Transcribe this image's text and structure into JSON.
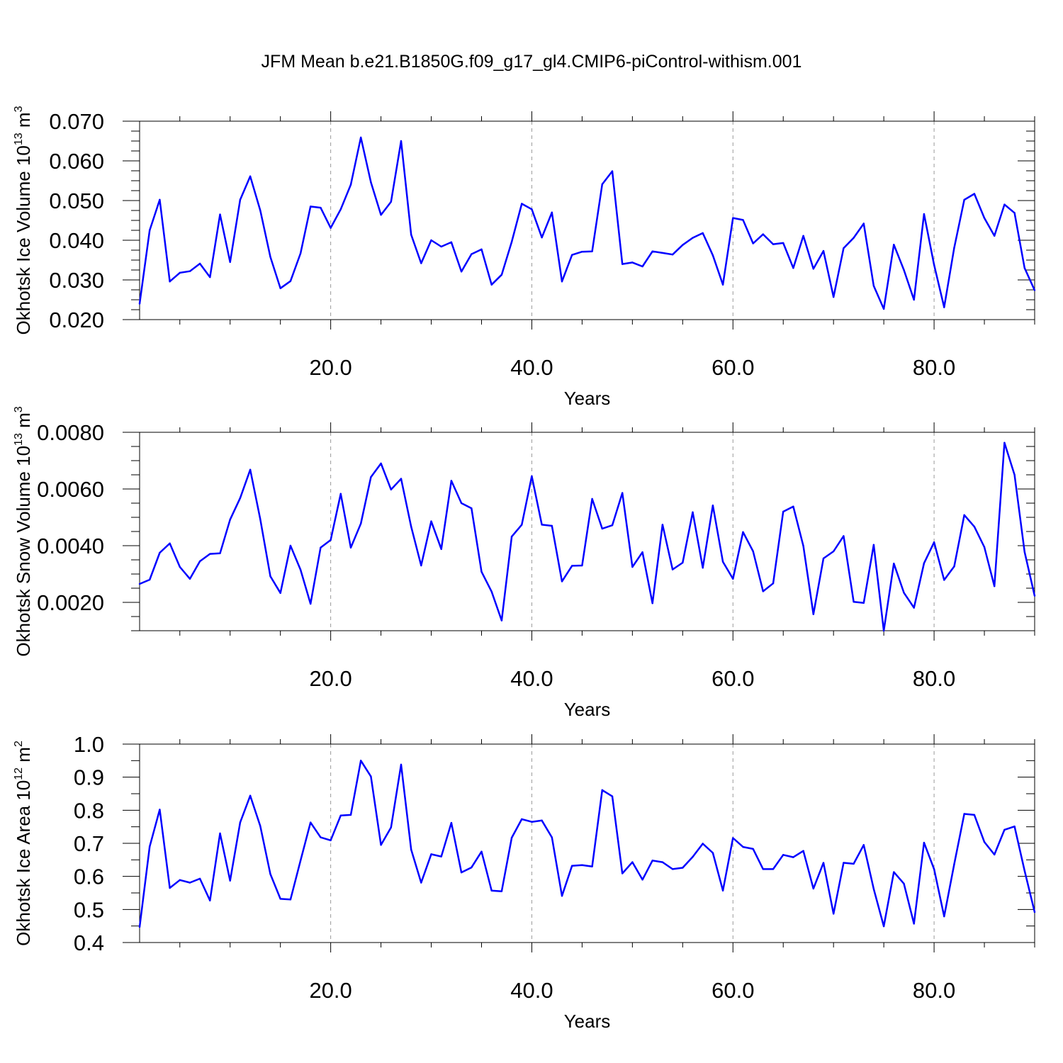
{
  "title": "JFM Mean b.e21.B1850G.f09_g17_gl4.CMIP6-piControl-withism.001",
  "chart_data": [
    {
      "type": "line",
      "title": "",
      "xlabel": "Years",
      "ylabel": "Okhotsk Ice Volume 10",
      "ylabel_sup": "13",
      "ylabel_unit": " m",
      "ylabel_unit_sup": "3",
      "xlim": [
        1,
        90
      ],
      "ylim": [
        0.02,
        0.07
      ],
      "yticks": [
        0.02,
        0.03,
        0.04,
        0.05,
        0.06,
        0.07
      ],
      "ytick_labels": [
        "0.020",
        "0.030",
        "0.040",
        "0.050",
        "0.060",
        "0.070"
      ],
      "xticks": [
        20,
        40,
        60,
        80
      ],
      "xtick_labels": [
        "20.0",
        "40.0",
        "60.0",
        "80.0"
      ],
      "grid": "vertical dashed at major x ticks",
      "series": [
        {
          "color": "#0000ff",
          "x": [
            1,
            2,
            3,
            4,
            5,
            6,
            7,
            8,
            9,
            10,
            11,
            12,
            13,
            14,
            15,
            16,
            17,
            18,
            19,
            20,
            21,
            22,
            23,
            24,
            25,
            26,
            27,
            28,
            29,
            30,
            31,
            32,
            33,
            34,
            35,
            36,
            37,
            38,
            39,
            40,
            41,
            42,
            43,
            44,
            45,
            46,
            47,
            48,
            49,
            50,
            51,
            52,
            53,
            54,
            55,
            56,
            57,
            58,
            59,
            60,
            61,
            62,
            63,
            64,
            65,
            66,
            67,
            68,
            69,
            70,
            71,
            72,
            73,
            74,
            75,
            76,
            77,
            78,
            79,
            80,
            81,
            82,
            83,
            84,
            85,
            86,
            87,
            88,
            89,
            90
          ],
          "y": [
            0.024,
            0.0425,
            0.0502,
            0.0296,
            0.0318,
            0.0322,
            0.0341,
            0.0307,
            0.0465,
            0.0345,
            0.0502,
            0.0561,
            0.0475,
            0.0358,
            0.0279,
            0.0297,
            0.0367,
            0.0485,
            0.0482,
            0.0431,
            0.0478,
            0.054,
            0.0659,
            0.0546,
            0.0464,
            0.0497,
            0.065,
            0.0414,
            0.0342,
            0.04,
            0.0384,
            0.0395,
            0.0321,
            0.0365,
            0.0377,
            0.0288,
            0.0313,
            0.0396,
            0.0492,
            0.0478,
            0.0407,
            0.047,
            0.0296,
            0.0363,
            0.0371,
            0.0372,
            0.0541,
            0.0574,
            0.034,
            0.0344,
            0.0334,
            0.0372,
            0.0368,
            0.0364,
            0.0388,
            0.0406,
            0.0418,
            0.0362,
            0.0288,
            0.0456,
            0.0451,
            0.0392,
            0.0415,
            0.039,
            0.0393,
            0.033,
            0.0411,
            0.0328,
            0.0373,
            0.0257,
            0.038,
            0.0406,
            0.0442,
            0.0285,
            0.0227,
            0.0389,
            0.0325,
            0.025,
            0.0466,
            0.0338,
            0.0231,
            0.0381,
            0.0502,
            0.0517,
            0.0456,
            0.0411,
            0.049,
            0.0469,
            0.033,
            0.0274
          ]
        }
      ]
    },
    {
      "type": "line",
      "title": "",
      "xlabel": "Years",
      "ylabel": "Okhotsk Snow Volume 10",
      "ylabel_sup": "13",
      "ylabel_unit": " m",
      "ylabel_unit_sup": "3",
      "xlim": [
        1,
        90
      ],
      "ylim": [
        0.001,
        0.008
      ],
      "yticks": [
        0.002,
        0.004,
        0.006,
        0.008
      ],
      "ytick_labels": [
        "0.0020",
        "0.0040",
        "0.0060",
        "0.0080"
      ],
      "xticks": [
        20,
        40,
        60,
        80
      ],
      "xtick_labels": [
        "20.0",
        "40.0",
        "60.0",
        "80.0"
      ],
      "grid": "vertical dashed at major x ticks",
      "series": [
        {
          "color": "#0000ff",
          "x": [
            1,
            2,
            3,
            4,
            5,
            6,
            7,
            8,
            9,
            10,
            11,
            12,
            13,
            14,
            15,
            16,
            17,
            18,
            19,
            20,
            21,
            22,
            23,
            24,
            25,
            26,
            27,
            28,
            29,
            30,
            31,
            32,
            33,
            34,
            35,
            36,
            37,
            38,
            39,
            40,
            41,
            42,
            43,
            44,
            45,
            46,
            47,
            48,
            49,
            50,
            51,
            52,
            53,
            54,
            55,
            56,
            57,
            58,
            59,
            60,
            61,
            62,
            63,
            64,
            65,
            66,
            67,
            68,
            69,
            70,
            71,
            72,
            73,
            74,
            75,
            76,
            77,
            78,
            79,
            80,
            81,
            82,
            83,
            84,
            85,
            86,
            87,
            88,
            89,
            90
          ],
          "y": [
            0.00265,
            0.0028,
            0.00375,
            0.00408,
            0.00325,
            0.00283,
            0.00345,
            0.00371,
            0.00373,
            0.00492,
            0.00568,
            0.00668,
            0.00493,
            0.00292,
            0.00233,
            0.004,
            0.00315,
            0.00195,
            0.00393,
            0.0042,
            0.00583,
            0.00393,
            0.00478,
            0.00642,
            0.0069,
            0.00598,
            0.00636,
            0.00467,
            0.0033,
            0.00486,
            0.00388,
            0.00629,
            0.0055,
            0.00532,
            0.00308,
            0.00238,
            0.00136,
            0.00432,
            0.00474,
            0.00645,
            0.00474,
            0.0047,
            0.00274,
            0.00329,
            0.0033,
            0.00565,
            0.0046,
            0.00472,
            0.00586,
            0.00325,
            0.00377,
            0.00197,
            0.00474,
            0.00316,
            0.0034,
            0.00518,
            0.00322,
            0.00542,
            0.00343,
            0.00283,
            0.00448,
            0.0038,
            0.00239,
            0.00267,
            0.0052,
            0.00538,
            0.00399,
            0.00158,
            0.00355,
            0.0038,
            0.00434,
            0.00202,
            0.00198,
            0.00403,
            0.001,
            0.00337,
            0.00234,
            0.00181,
            0.00338,
            0.00412,
            0.00279,
            0.00327,
            0.00508,
            0.00467,
            0.00395,
            0.00257,
            0.00763,
            0.0065,
            0.00378,
            0.00223
          ]
        }
      ]
    },
    {
      "type": "line",
      "title": "",
      "xlabel": "Years",
      "ylabel": "Okhotsk Ice Area 10",
      "ylabel_sup": "12",
      "ylabel_unit": " m",
      "ylabel_unit_sup": "2",
      "xlim": [
        1,
        90
      ],
      "ylim": [
        0.4,
        1.0
      ],
      "yticks": [
        0.4,
        0.5,
        0.6,
        0.7,
        0.8,
        0.9,
        1.0
      ],
      "ytick_labels": [
        "0.4",
        "0.5",
        "0.6",
        "0.7",
        "0.8",
        "0.9",
        "1.0"
      ],
      "xticks": [
        20,
        40,
        60,
        80
      ],
      "xtick_labels": [
        "20.0",
        "40.0",
        "60.0",
        "80.0"
      ],
      "grid": "vertical dashed at major x ticks",
      "series": [
        {
          "color": "#0000ff",
          "x": [
            1,
            2,
            3,
            4,
            5,
            6,
            7,
            8,
            9,
            10,
            11,
            12,
            13,
            14,
            15,
            16,
            17,
            18,
            19,
            20,
            21,
            22,
            23,
            24,
            25,
            26,
            27,
            28,
            29,
            30,
            31,
            32,
            33,
            34,
            35,
            36,
            37,
            38,
            39,
            40,
            41,
            42,
            43,
            44,
            45,
            46,
            47,
            48,
            49,
            50,
            51,
            52,
            53,
            54,
            55,
            56,
            57,
            58,
            59,
            60,
            61,
            62,
            63,
            64,
            65,
            66,
            67,
            68,
            69,
            70,
            71,
            72,
            73,
            74,
            75,
            76,
            77,
            78,
            79,
            80,
            81,
            82,
            83,
            84,
            85,
            86,
            87,
            88,
            89,
            90
          ],
          "y": [
            0.447,
            0.69,
            0.802,
            0.565,
            0.589,
            0.581,
            0.593,
            0.527,
            0.73,
            0.587,
            0.763,
            0.844,
            0.752,
            0.607,
            0.532,
            0.53,
            0.648,
            0.763,
            0.718,
            0.709,
            0.784,
            0.786,
            0.95,
            0.902,
            0.695,
            0.748,
            0.938,
            0.681,
            0.581,
            0.667,
            0.66,
            0.762,
            0.612,
            0.627,
            0.675,
            0.557,
            0.555,
            0.717,
            0.773,
            0.765,
            0.769,
            0.718,
            0.541,
            0.632,
            0.634,
            0.63,
            0.861,
            0.842,
            0.609,
            0.643,
            0.59,
            0.648,
            0.643,
            0.622,
            0.626,
            0.659,
            0.699,
            0.671,
            0.557,
            0.716,
            0.689,
            0.683,
            0.622,
            0.622,
            0.665,
            0.658,
            0.677,
            0.563,
            0.641,
            0.487,
            0.641,
            0.638,
            0.695,
            0.562,
            0.449,
            0.613,
            0.578,
            0.457,
            0.702,
            0.622,
            0.479,
            0.637,
            0.789,
            0.786,
            0.704,
            0.666,
            0.741,
            0.751,
            0.617,
            0.492
          ]
        }
      ]
    }
  ]
}
